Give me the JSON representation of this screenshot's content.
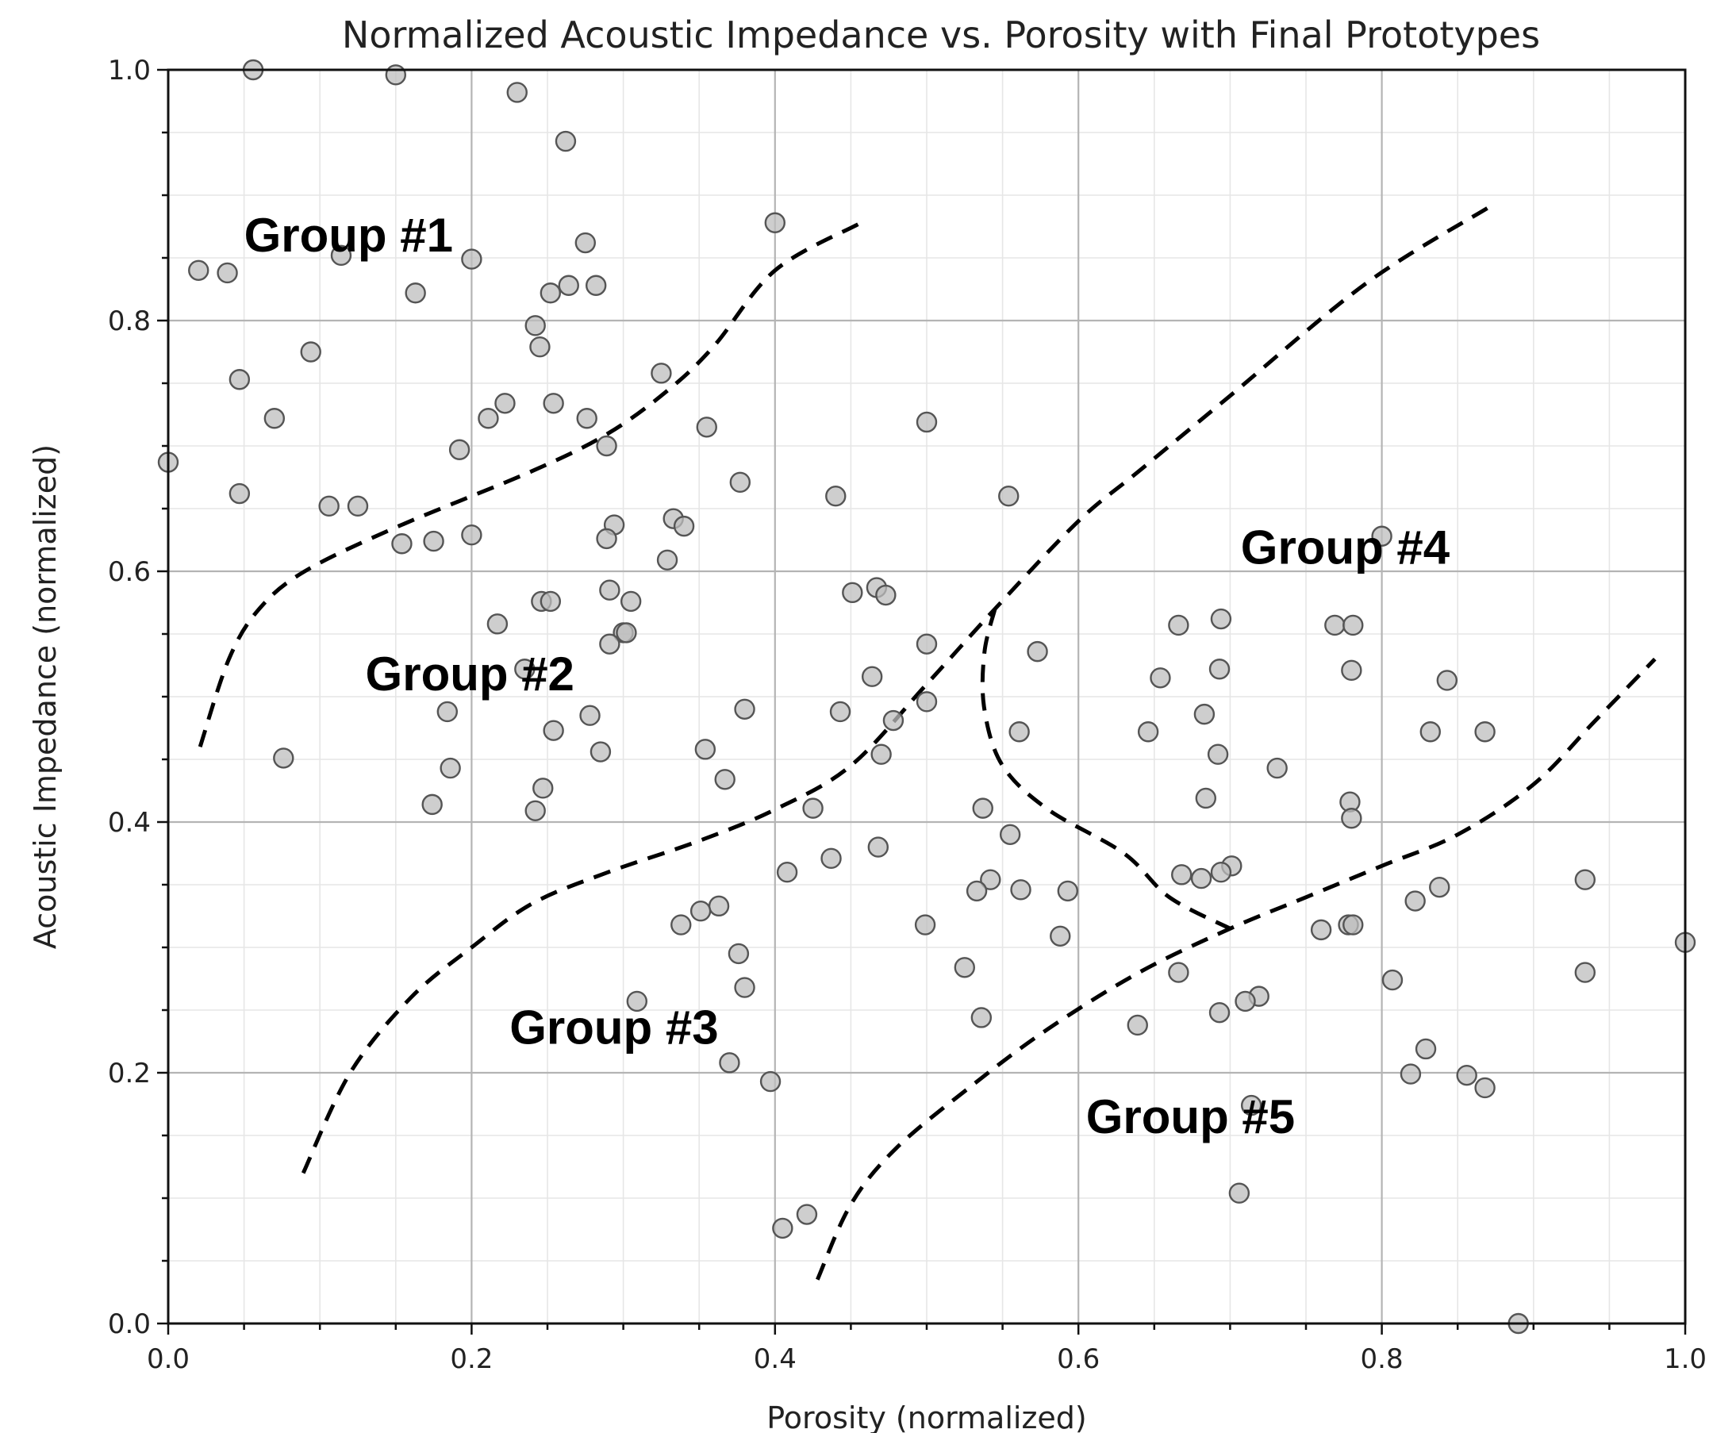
{
  "chart_data": {
    "type": "scatter",
    "title": "Normalized Acoustic Impedance vs. Porosity with Final Prototypes",
    "xlabel": "Porosity (normalized)",
    "ylabel": "Acoustic Impedance (normalized)",
    "xlim": [
      0.0,
      1.0
    ],
    "ylim": [
      0.0,
      1.0
    ],
    "x_ticks": [
      "0.0",
      "0.2",
      "0.4",
      "0.6",
      "0.8",
      "1.0"
    ],
    "y_ticks": [
      "0.0",
      "0.2",
      "0.4",
      "0.6",
      "0.8",
      "1.0"
    ],
    "grid": "major and minor",
    "points": [
      {
        "x": 0.056,
        "y": 1.0
      },
      {
        "x": 0.15,
        "y": 0.996
      },
      {
        "x": 0.23,
        "y": 0.982
      },
      {
        "x": 0.262,
        "y": 0.943
      },
      {
        "x": 0.4,
        "y": 0.878
      },
      {
        "x": 0.275,
        "y": 0.862
      },
      {
        "x": 0.2,
        "y": 0.849
      },
      {
        "x": 0.114,
        "y": 0.852
      },
      {
        "x": 0.02,
        "y": 0.84
      },
      {
        "x": 0.039,
        "y": 0.838
      },
      {
        "x": 0.163,
        "y": 0.822
      },
      {
        "x": 0.252,
        "y": 0.822
      },
      {
        "x": 0.264,
        "y": 0.828
      },
      {
        "x": 0.282,
        "y": 0.828
      },
      {
        "x": 0.242,
        "y": 0.796
      },
      {
        "x": 0.245,
        "y": 0.779
      },
      {
        "x": 0.094,
        "y": 0.775
      },
      {
        "x": 0.325,
        "y": 0.758
      },
      {
        "x": 0.047,
        "y": 0.753
      },
      {
        "x": 0.222,
        "y": 0.734
      },
      {
        "x": 0.254,
        "y": 0.734
      },
      {
        "x": 0.07,
        "y": 0.722
      },
      {
        "x": 0.211,
        "y": 0.722
      },
      {
        "x": 0.276,
        "y": 0.722
      },
      {
        "x": 0.5,
        "y": 0.719
      },
      {
        "x": 0.355,
        "y": 0.715
      },
      {
        "x": 0.289,
        "y": 0.7
      },
      {
        "x": 0.192,
        "y": 0.697
      },
      {
        "x": 0.0,
        "y": 0.687
      },
      {
        "x": 0.377,
        "y": 0.671
      },
      {
        "x": 0.047,
        "y": 0.662
      },
      {
        "x": 0.44,
        "y": 0.66
      },
      {
        "x": 0.554,
        "y": 0.66
      },
      {
        "x": 0.106,
        "y": 0.652
      },
      {
        "x": 0.125,
        "y": 0.652
      },
      {
        "x": 0.333,
        "y": 0.642
      },
      {
        "x": 0.294,
        "y": 0.637
      },
      {
        "x": 0.34,
        "y": 0.636
      },
      {
        "x": 0.2,
        "y": 0.629
      },
      {
        "x": 0.8,
        "y": 0.628
      },
      {
        "x": 0.289,
        "y": 0.626
      },
      {
        "x": 0.175,
        "y": 0.624
      },
      {
        "x": 0.154,
        "y": 0.622
      },
      {
        "x": 0.329,
        "y": 0.609
      },
      {
        "x": 0.467,
        "y": 0.587
      },
      {
        "x": 0.291,
        "y": 0.585
      },
      {
        "x": 0.451,
        "y": 0.583
      },
      {
        "x": 0.473,
        "y": 0.581
      },
      {
        "x": 0.246,
        "y": 0.576
      },
      {
        "x": 0.252,
        "y": 0.576
      },
      {
        "x": 0.305,
        "y": 0.576
      },
      {
        "x": 0.694,
        "y": 0.562
      },
      {
        "x": 0.217,
        "y": 0.558
      },
      {
        "x": 0.666,
        "y": 0.557
      },
      {
        "x": 0.769,
        "y": 0.557
      },
      {
        "x": 0.781,
        "y": 0.557
      },
      {
        "x": 0.3,
        "y": 0.551
      },
      {
        "x": 0.302,
        "y": 0.551
      },
      {
        "x": 0.291,
        "y": 0.542
      },
      {
        "x": 0.5,
        "y": 0.542
      },
      {
        "x": 0.573,
        "y": 0.536
      },
      {
        "x": 0.235,
        "y": 0.522
      },
      {
        "x": 0.693,
        "y": 0.522
      },
      {
        "x": 0.78,
        "y": 0.521
      },
      {
        "x": 0.464,
        "y": 0.516
      },
      {
        "x": 0.654,
        "y": 0.515
      },
      {
        "x": 0.843,
        "y": 0.513
      },
      {
        "x": 0.5,
        "y": 0.496
      },
      {
        "x": 0.38,
        "y": 0.49
      },
      {
        "x": 0.443,
        "y": 0.488
      },
      {
        "x": 0.184,
        "y": 0.488
      },
      {
        "x": 0.278,
        "y": 0.485
      },
      {
        "x": 0.683,
        "y": 0.486
      },
      {
        "x": 0.478,
        "y": 0.481
      },
      {
        "x": 0.254,
        "y": 0.473
      },
      {
        "x": 0.561,
        "y": 0.472
      },
      {
        "x": 0.646,
        "y": 0.472
      },
      {
        "x": 0.832,
        "y": 0.472
      },
      {
        "x": 0.868,
        "y": 0.472
      },
      {
        "x": 0.354,
        "y": 0.458
      },
      {
        "x": 0.285,
        "y": 0.456
      },
      {
        "x": 0.47,
        "y": 0.454
      },
      {
        "x": 0.692,
        "y": 0.454
      },
      {
        "x": 0.076,
        "y": 0.451
      },
      {
        "x": 0.186,
        "y": 0.443
      },
      {
        "x": 0.731,
        "y": 0.443
      },
      {
        "x": 0.367,
        "y": 0.434
      },
      {
        "x": 0.247,
        "y": 0.427
      },
      {
        "x": 0.684,
        "y": 0.419
      },
      {
        "x": 0.779,
        "y": 0.416
      },
      {
        "x": 0.174,
        "y": 0.414
      },
      {
        "x": 0.425,
        "y": 0.411
      },
      {
        "x": 0.537,
        "y": 0.411
      },
      {
        "x": 0.242,
        "y": 0.409
      },
      {
        "x": 0.78,
        "y": 0.403
      },
      {
        "x": 0.555,
        "y": 0.39
      },
      {
        "x": 0.468,
        "y": 0.38
      },
      {
        "x": 0.437,
        "y": 0.371
      },
      {
        "x": 0.701,
        "y": 0.365
      },
      {
        "x": 0.408,
        "y": 0.36
      },
      {
        "x": 0.694,
        "y": 0.36
      },
      {
        "x": 0.668,
        "y": 0.358
      },
      {
        "x": 0.542,
        "y": 0.354
      },
      {
        "x": 0.681,
        "y": 0.355
      },
      {
        "x": 0.934,
        "y": 0.354
      },
      {
        "x": 0.838,
        "y": 0.348
      },
      {
        "x": 0.562,
        "y": 0.346
      },
      {
        "x": 0.533,
        "y": 0.345
      },
      {
        "x": 0.593,
        "y": 0.345
      },
      {
        "x": 0.363,
        "y": 0.333
      },
      {
        "x": 0.822,
        "y": 0.337
      },
      {
        "x": 0.351,
        "y": 0.329
      },
      {
        "x": 0.338,
        "y": 0.318
      },
      {
        "x": 0.499,
        "y": 0.318
      },
      {
        "x": 0.76,
        "y": 0.314
      },
      {
        "x": 0.778,
        "y": 0.318
      },
      {
        "x": 0.781,
        "y": 0.318
      },
      {
        "x": 0.588,
        "y": 0.309
      },
      {
        "x": 1.0,
        "y": 0.304
      },
      {
        "x": 0.376,
        "y": 0.295
      },
      {
        "x": 0.525,
        "y": 0.284
      },
      {
        "x": 0.666,
        "y": 0.28
      },
      {
        "x": 0.934,
        "y": 0.28
      },
      {
        "x": 0.807,
        "y": 0.274
      },
      {
        "x": 0.38,
        "y": 0.268
      },
      {
        "x": 0.719,
        "y": 0.261
      },
      {
        "x": 0.71,
        "y": 0.257
      },
      {
        "x": 0.309,
        "y": 0.257
      },
      {
        "x": 0.693,
        "y": 0.248
      },
      {
        "x": 0.536,
        "y": 0.244
      },
      {
        "x": 0.639,
        "y": 0.238
      },
      {
        "x": 0.829,
        "y": 0.219
      },
      {
        "x": 0.37,
        "y": 0.208
      },
      {
        "x": 0.819,
        "y": 0.199
      },
      {
        "x": 0.856,
        "y": 0.198
      },
      {
        "x": 0.397,
        "y": 0.193
      },
      {
        "x": 0.868,
        "y": 0.188
      },
      {
        "x": 0.714,
        "y": 0.174
      },
      {
        "x": 0.706,
        "y": 0.104
      },
      {
        "x": 0.421,
        "y": 0.087
      },
      {
        "x": 0.405,
        "y": 0.076
      },
      {
        "x": 0.89,
        "y": 0.0
      }
    ],
    "boundaries": [
      [
        [
          0.021,
          0.46
        ],
        [
          0.04,
          0.53
        ],
        [
          0.06,
          0.57
        ],
        [
          0.09,
          0.6
        ],
        [
          0.15,
          0.635
        ],
        [
          0.24,
          0.68
        ],
        [
          0.29,
          0.71
        ],
        [
          0.33,
          0.745
        ],
        [
          0.36,
          0.78
        ],
        [
          0.4,
          0.84
        ],
        [
          0.455,
          0.877
        ]
      ],
      [
        [
          0.089,
          0.12
        ],
        [
          0.12,
          0.2
        ],
        [
          0.16,
          0.26
        ],
        [
          0.2,
          0.3
        ],
        [
          0.24,
          0.335
        ],
        [
          0.29,
          0.36
        ],
        [
          0.35,
          0.385
        ],
        [
          0.4,
          0.41
        ],
        [
          0.45,
          0.445
        ],
        [
          0.5,
          0.51
        ],
        [
          0.545,
          0.57
        ],
        [
          0.6,
          0.64
        ],
        [
          0.64,
          0.68
        ],
        [
          0.7,
          0.74
        ],
        [
          0.79,
          0.83
        ],
        [
          0.87,
          0.89
        ]
      ],
      [
        [
          0.545,
          0.57
        ],
        [
          0.538,
          0.535
        ],
        [
          0.538,
          0.49
        ],
        [
          0.55,
          0.445
        ],
        [
          0.58,
          0.41
        ],
        [
          0.63,
          0.375
        ],
        [
          0.66,
          0.34
        ],
        [
          0.7,
          0.315
        ]
      ],
      [
        [
          0.428,
          0.035
        ],
        [
          0.45,
          0.095
        ],
        [
          0.48,
          0.14
        ],
        [
          0.53,
          0.19
        ],
        [
          0.58,
          0.235
        ],
        [
          0.64,
          0.28
        ],
        [
          0.7,
          0.315
        ],
        [
          0.75,
          0.34
        ],
        [
          0.8,
          0.365
        ],
        [
          0.85,
          0.39
        ],
        [
          0.9,
          0.43
        ],
        [
          0.94,
          0.48
        ],
        [
          0.98,
          0.53
        ]
      ]
    ],
    "group_labels": [
      {
        "text": "Group #1",
        "x": 0.05,
        "y": 0.855
      },
      {
        "text": "Group #2",
        "x": 0.13,
        "y": 0.505
      },
      {
        "text": "Group #3",
        "x": 0.225,
        "y": 0.223
      },
      {
        "text": "Group #4",
        "x": 0.707,
        "y": 0.606
      },
      {
        "text": "Group #5",
        "x": 0.605,
        "y": 0.152
      }
    ]
  }
}
